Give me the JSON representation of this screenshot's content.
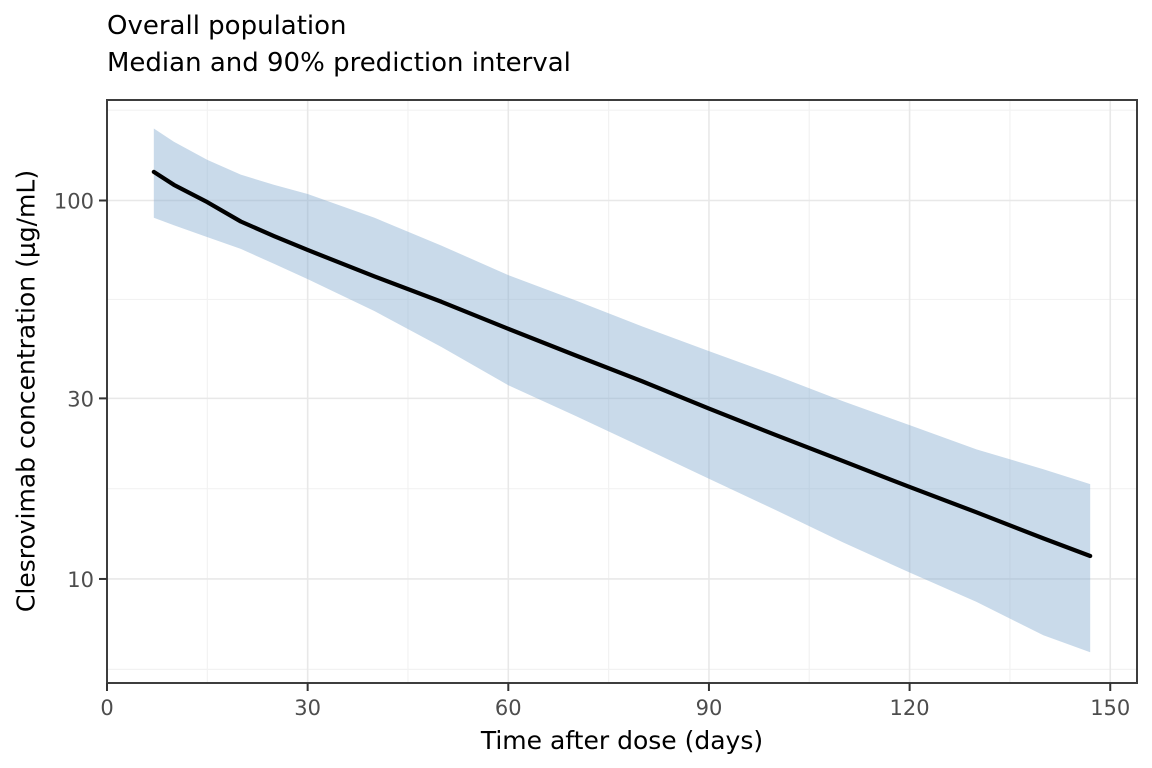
{
  "title": {
    "line1": "Overall population",
    "line2": "Median and 90% prediction interval"
  },
  "axes": {
    "x": {
      "label": "Time after dose (days)",
      "ticks": [
        0,
        30,
        60,
        90,
        120,
        150
      ],
      "tick_labels": [
        "0",
        "30",
        "60",
        "90",
        "120",
        "150"
      ],
      "minor_ticks": [
        15,
        45,
        75,
        105,
        135
      ]
    },
    "y": {
      "label": "Clesrovimab concentration (μg/mL)",
      "scale": "log10",
      "ticks": [
        10,
        30,
        100
      ],
      "tick_labels": [
        "10",
        "30",
        "100"
      ],
      "minor_ticks": [
        5.77,
        17.32,
        54.77,
        173.2
      ]
    }
  },
  "chart_data": {
    "type": "line",
    "title": "Overall population — Median and 90% prediction interval",
    "xlabel": "Time after dose (days)",
    "ylabel": "Clesrovimab concentration (μg/mL)",
    "yscale": "log",
    "xlim": [
      0,
      154
    ],
    "ylim": [
      5.31,
      184.3
    ],
    "grid": "on",
    "legend": "none",
    "x": [
      7,
      10,
      15,
      20,
      25,
      30,
      40,
      50,
      60,
      70,
      80,
      90,
      100,
      110,
      120,
      130,
      140,
      147
    ],
    "series": [
      {
        "name": "median",
        "values": [
          119,
          110,
          99,
          88,
          80.5,
          74,
          63,
          54,
          45.8,
          39,
          33.3,
          28.2,
          24,
          20.5,
          17.5,
          15,
          12.8,
          11.5
        ]
      },
      {
        "name": "pi90_upper",
        "values": [
          155,
          143,
          128,
          117,
          110,
          104,
          90,
          76,
          63.5,
          54.5,
          46.5,
          40,
          34.5,
          29.5,
          25.5,
          22,
          19.5,
          17.8
        ]
      },
      {
        "name": "pi90_lower",
        "values": [
          90,
          86,
          80,
          74.5,
          68,
          62,
          51,
          41,
          32.5,
          27,
          22.3,
          18.4,
          15.2,
          12.5,
          10.4,
          8.7,
          7.1,
          6.4
        ]
      }
    ]
  },
  "style": {
    "ribbon_fill": "#88aed0",
    "ribbon_opacity": 0.45,
    "line_color": "#000000",
    "grid_major": "#e8e8e8",
    "grid_minor": "#f2f2f2",
    "panel_border": "#3d3d3d",
    "tick_color": "#333333",
    "tick_label_color": "#4d4d4d"
  }
}
